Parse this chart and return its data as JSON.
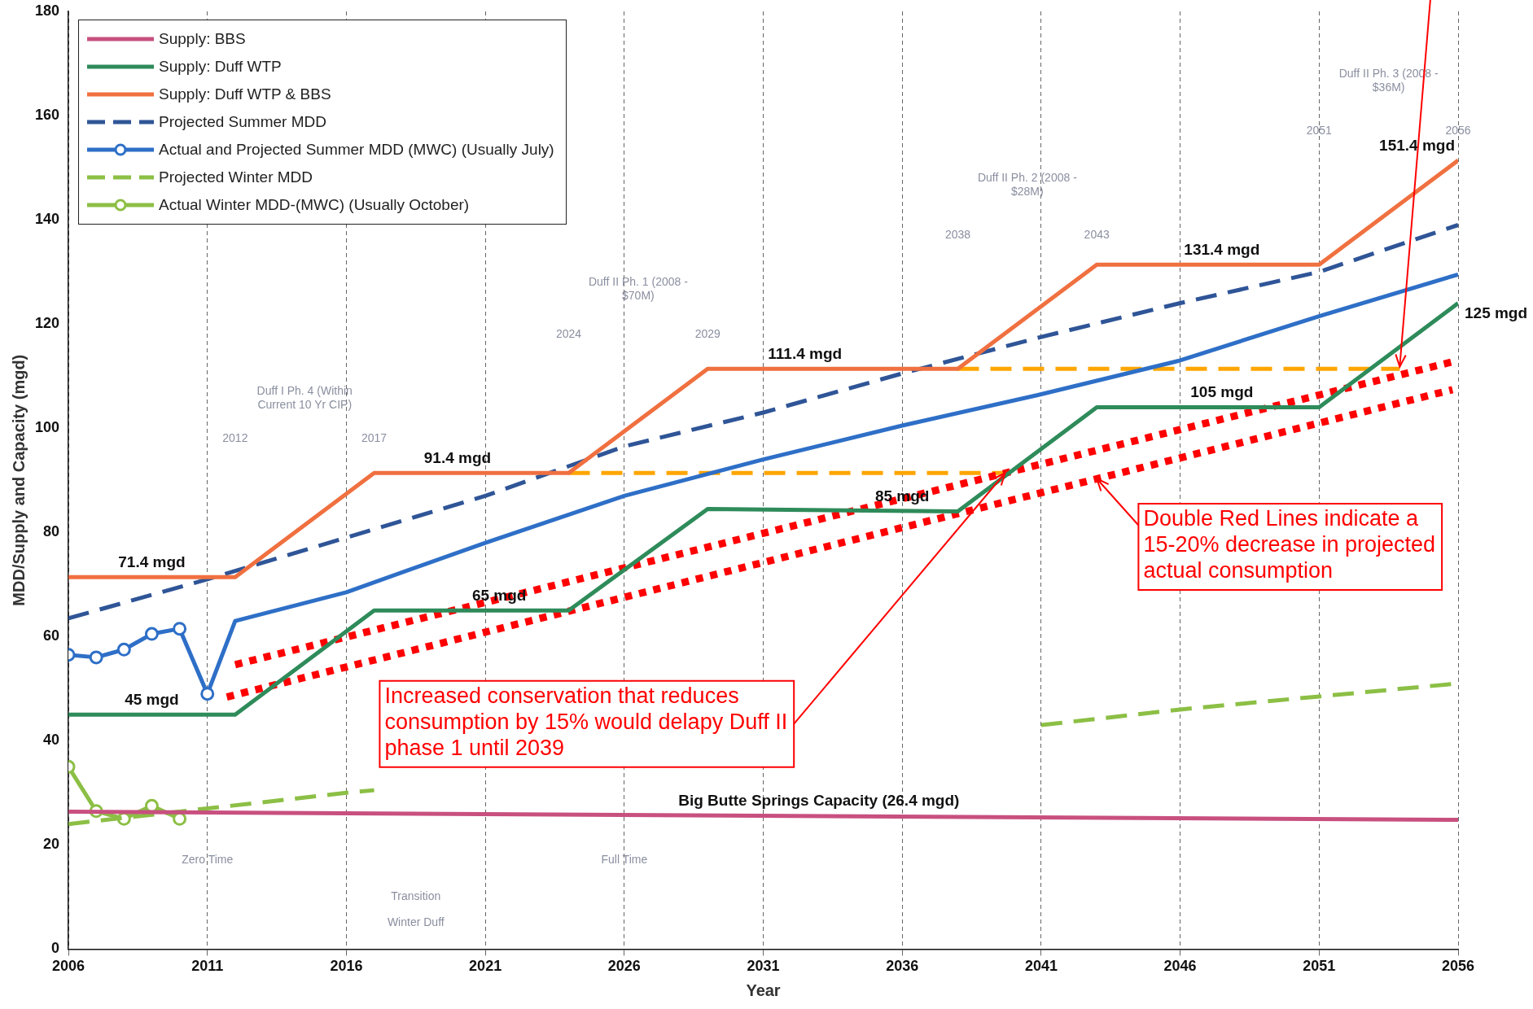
{
  "chart_data": {
    "type": "line",
    "xlabel": "Year",
    "ylabel": "MDD/Supply and Capacity (mgd)",
    "xlim": [
      2006,
      2056
    ],
    "ylim": [
      0,
      180
    ],
    "xticks": [
      2006,
      2011,
      2016,
      2021,
      2026,
      2031,
      2036,
      2041,
      2046,
      2051,
      2056
    ],
    "yticks": [
      0,
      20,
      40,
      60,
      80,
      100,
      120,
      140,
      160,
      180
    ],
    "grid": "x",
    "legend": "top left",
    "series": [
      {
        "name": "Supply: BBS",
        "color": "#c8507f",
        "line_style": "solid",
        "marker": "none",
        "x": [
          2006,
          2056
        ],
        "values": [
          26.4,
          24.8
        ]
      },
      {
        "name": "Supply: Duff WTP",
        "color": "#2e8b5a",
        "line_style": "solid",
        "marker": "none",
        "x": [
          2006,
          2011,
          2012,
          2017,
          2024,
          2029,
          2038,
          2043,
          2051,
          2056
        ],
        "values": [
          45,
          45,
          45,
          65,
          65,
          84.5,
          84,
          104,
          104,
          124
        ]
      },
      {
        "name": "Supply: Duff WTP & BBS",
        "color": "#f07040",
        "line_style": "solid",
        "marker": "none",
        "x": [
          2006,
          2012,
          2017,
          2024,
          2029,
          2038,
          2043,
          2051,
          2056
        ],
        "values": [
          71.4,
          71.4,
          91.4,
          91.4,
          111.4,
          111.4,
          131.4,
          131.4,
          151.4
        ]
      },
      {
        "name": "Projected Summer MDD",
        "color": "#2f5597",
        "line_style": "dashed",
        "marker": "none",
        "x": [
          2006,
          2011,
          2016,
          2021,
          2026,
          2031,
          2036,
          2041,
          2046,
          2051,
          2056
        ],
        "values": [
          63.5,
          71,
          79,
          87,
          96.5,
          103,
          110.5,
          117.5,
          124,
          130,
          139
        ]
      },
      {
        "name": "Actual and Projected Summer MDD (MWC) (Usually July)",
        "color": "#2e6fc7",
        "line_style": "solid",
        "marker": "circle",
        "x": [
          2006,
          2007,
          2008,
          2009,
          2010,
          2011
        ],
        "values": [
          56.5,
          56,
          57.5,
          60.5,
          61.5,
          49
        ]
      },
      {
        "color": "#2e6fc7",
        "line_style": "solid",
        "marker": "none",
        "x": [
          2011,
          2012,
          2016,
          2021,
          2026,
          2031,
          2036,
          2041,
          2046,
          2051,
          2056
        ],
        "values": [
          49,
          63,
          68.5,
          78,
          87,
          94,
          100.5,
          106.5,
          113,
          121.5,
          129.5
        ]
      },
      {
        "name": "Projected Winter MDD",
        "color": "#8cbf45",
        "line_style": "dashed",
        "marker": "none",
        "x": [
          2006,
          2011,
          2016,
          2017,
          2036,
          2041,
          2046,
          2051,
          2056
        ],
        "values": [
          24,
          27,
          30,
          30.5,
          null,
          43,
          46,
          48.5,
          51
        ]
      },
      {
        "name": "Actual Winter MDD-(MWC) (Usually October)",
        "color": "#8cbf45",
        "line_style": "solid",
        "marker": "circle",
        "x": [
          2006,
          2007,
          2008,
          2009,
          2010
        ],
        "values": [
          35,
          26.5,
          25,
          27.5,
          25
        ]
      },
      {
        "color": "#ff0000",
        "line_style": "dotted",
        "marker": "none",
        "x": [
          2012,
          2056
        ],
        "values": [
          54.6,
          113
        ]
      },
      {
        "color": "#ff0000",
        "line_style": "dotted",
        "marker": "none",
        "x": [
          2011.7,
          2055.8
        ],
        "values": [
          48.4,
          107.4
        ]
      },
      {
        "color": "#ffa500",
        "line_style": "dashed",
        "marker": "none",
        "x": [
          2024,
          2039.7
        ],
        "values": [
          91.4,
          91.4
        ]
      },
      {
        "color": "#ffa500",
        "line_style": "dashed",
        "marker": "none",
        "x": [
          2038,
          2053.9
        ],
        "values": [
          111.4,
          111.4
        ]
      }
    ],
    "annotations": [
      {
        "text": "71.4 mgd",
        "x": 2009,
        "y": 71.4
      },
      {
        "text": "91.4 mgd",
        "x": 2020,
        "y": 91.4
      },
      {
        "text": "111.4 mgd",
        "x": 2032.5,
        "y": 111.4
      },
      {
        "text": "131.4 mgd",
        "x": 2047.5,
        "y": 131.4
      },
      {
        "text": "151.4 mgd",
        "x": 2056,
        "y": 151.4
      },
      {
        "text": "45 mgd",
        "x": 2009,
        "y": 45
      },
      {
        "text": "65 mgd",
        "x": 2021.5,
        "y": 65
      },
      {
        "text": "85 mgd",
        "x": 2036,
        "y": 84
      },
      {
        "text": "105 mgd",
        "x": 2047.5,
        "y": 104
      },
      {
        "text": "125 mgd",
        "x": 2056,
        "y": 124
      },
      {
        "text": "Big Butte Springs Capacity (26.4 mgd)",
        "x": 2033,
        "y": 25.6
      },
      {
        "text": "Increased conservation that reduces consumption by 15% would delapy Duff II phase 1 until 2039",
        "x": 2039.7,
        "y": 91.4
      },
      {
        "text": "Double Red Lines indicate a 15-20% decrease in projected actual consumption",
        "x": 2043,
        "y": 90.3
      },
      "Duff I Ph. 4 (Within Current 10 Yr CIP)",
      "2012",
      "2017",
      "Duff II Ph. 1 (2008 - $70M)",
      "2024",
      "2029",
      "Duff II Ph. 2 (2008 - $28M)",
      "2038",
      "2043",
      "Duff II Ph. 3 (2008 - $36M)",
      "2051",
      "2056",
      "Zero Time",
      "Full Time",
      "Transition",
      "Winter Duff"
    ]
  }
}
